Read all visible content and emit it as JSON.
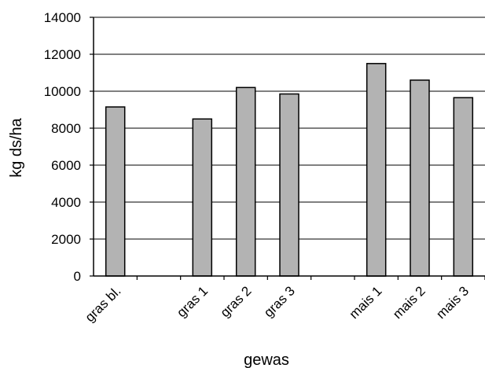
{
  "chart_data": {
    "type": "bar",
    "title": "",
    "xlabel": "gewas",
    "ylabel": "kg ds/ha",
    "categories": [
      "gras bl.",
      "",
      "gras 1",
      "gras 2",
      "gras 3",
      "",
      "mais 1",
      "mais 2",
      "mais 3"
    ],
    "values": [
      9150,
      null,
      8500,
      10200,
      9850,
      null,
      11500,
      10600,
      9650
    ],
    "ylim": [
      0,
      14000
    ],
    "yticks": [
      0,
      2000,
      4000,
      6000,
      8000,
      10000,
      12000,
      14000
    ],
    "ytick_labels": [
      "0",
      "2000",
      "4000",
      "6000",
      "8000",
      "10000",
      "12000",
      "14000"
    ],
    "grid": true,
    "colors": {
      "bar_fill": "#b3b3b3",
      "bar_stroke": "#000000",
      "grid": "#000000"
    }
  }
}
